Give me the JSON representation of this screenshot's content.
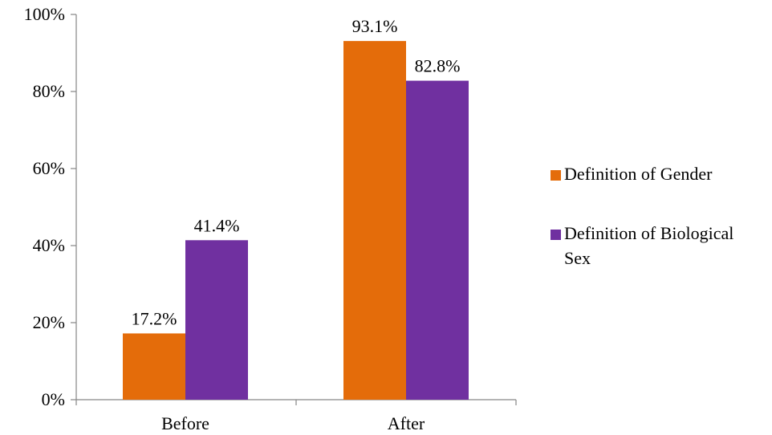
{
  "chart_data": {
    "type": "bar",
    "title": "",
    "xlabel": "",
    "ylabel": "",
    "categories": [
      "Before",
      "After"
    ],
    "series": [
      {
        "name": "Definition of Gender",
        "values": [
          17.2,
          93.1
        ],
        "labels": [
          "17.2%",
          "93.1%"
        ],
        "color": "#E46C0A"
      },
      {
        "name": "Definition of Biological Sex",
        "name_lines": [
          "Definition of Biological",
          "Sex"
        ],
        "values": [
          41.4,
          82.8
        ],
        "labels": [
          "41.4%",
          "82.8%"
        ],
        "color": "#7030A0"
      }
    ],
    "ylim": [
      0,
      100
    ],
    "yticks": [
      {
        "value": 0,
        "label": "0%"
      },
      {
        "value": 20,
        "label": "20%"
      },
      {
        "value": 40,
        "label": "40%"
      },
      {
        "value": 60,
        "label": "60%"
      },
      {
        "value": 80,
        "label": "80%"
      },
      {
        "value": 100,
        "label": "100%"
      }
    ],
    "grid": false,
    "legend_position": "right"
  }
}
